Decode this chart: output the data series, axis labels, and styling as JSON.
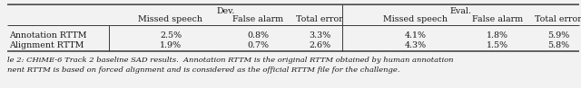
{
  "caption_prefix": "le 2: ",
  "caption_bold": "",
  "caption_main": "CHiME-6 Track 2 baseline SAD results.",
  "caption_rest": "  Annotation RTTM is the original RTTM obtained by human annotation",
  "caption2": "nent RTTM is based on forced alignment and is considered as the official RTTM file for the challenge.",
  "col_groups": [
    {
      "label": "Dev.",
      "cols": [
        "Missed speech",
        "False alarm",
        "Total error"
      ]
    },
    {
      "label": "Eval.",
      "cols": [
        "Missed speech",
        "False alarm",
        "Total error"
      ]
    }
  ],
  "row_labels": [
    "Annotation RTTM",
    "Alignment RTTM"
  ],
  "data": [
    [
      "2.5%",
      "0.8%",
      "3.3%",
      "4.1%",
      "1.8%",
      "5.9%"
    ],
    [
      "1.9%",
      "0.7%",
      "2.6%",
      "4.3%",
      "1.5%",
      "5.8%"
    ]
  ],
  "background_color": "#f2f2f2",
  "text_color": "#1a1a1a",
  "line_color": "#3a3a3a",
  "font_size": 6.8,
  "caption_font_size": 6.0
}
